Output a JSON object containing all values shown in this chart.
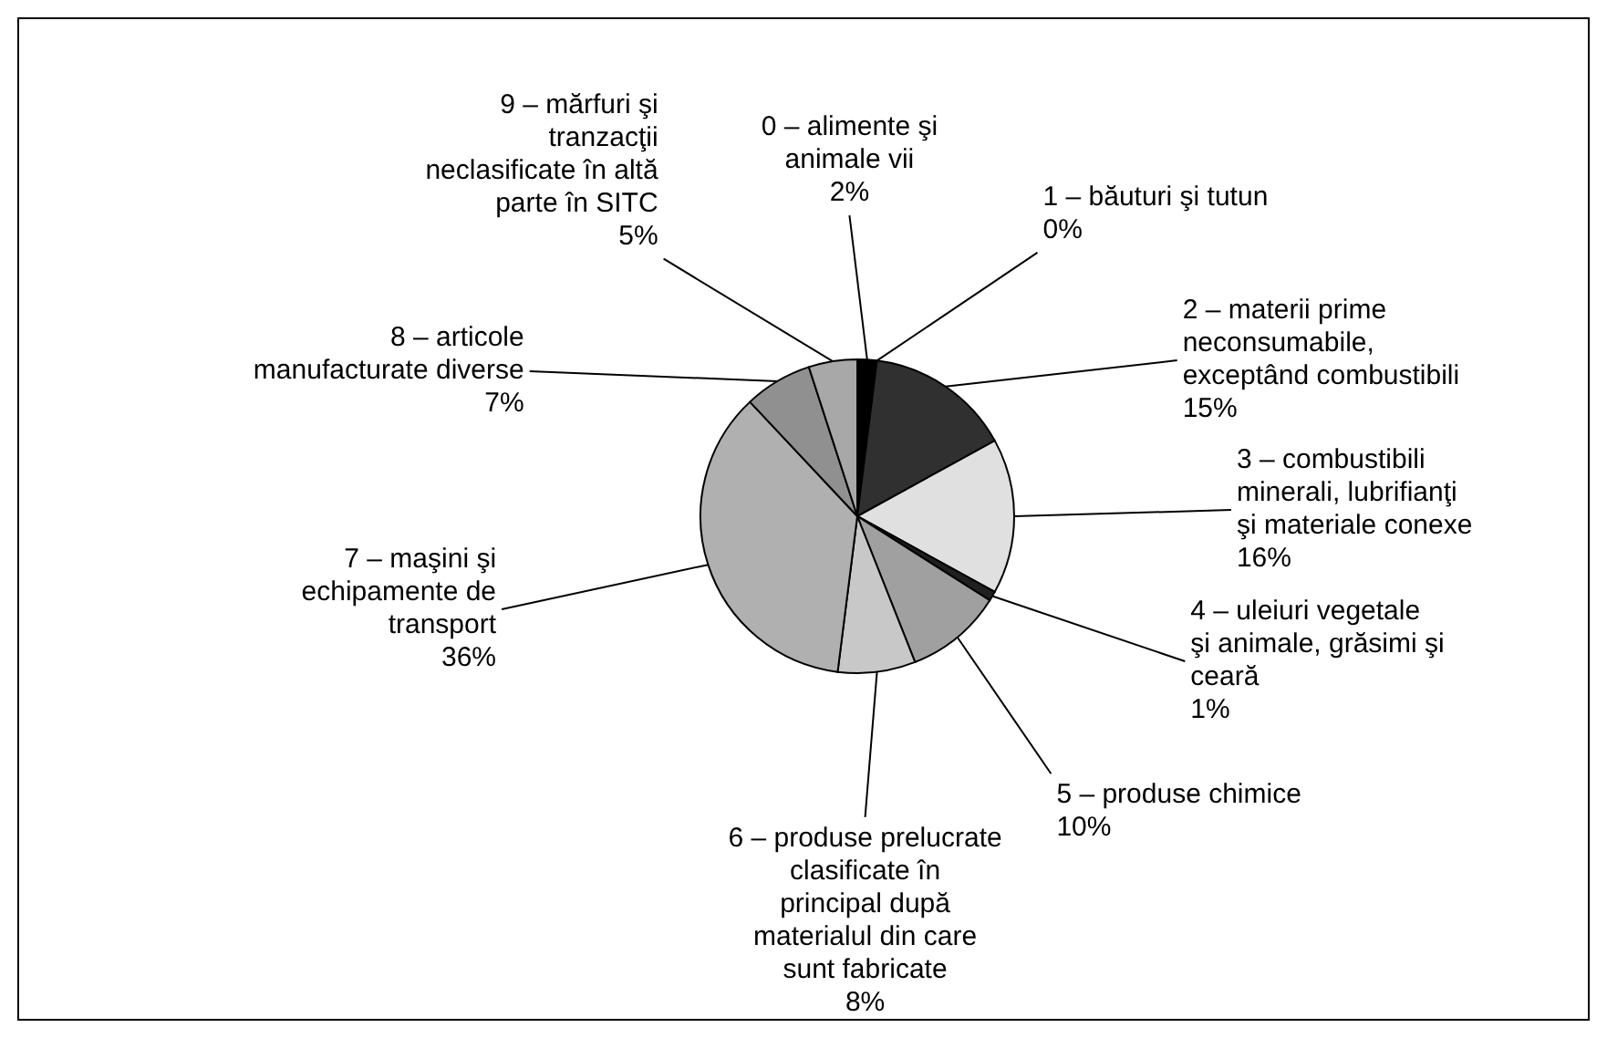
{
  "chart_data": {
    "type": "pie",
    "categories": [
      "0 – alimente şi animale vii",
      "1 – băuturi şi tutun",
      "2 – materii prime neconsumabile, exceptând combustibili",
      "3 – combustibili minerali, lubrifianţi şi materiale conexe",
      "4 – uleiuri vegetale şi animale, grăsimi şi ceară",
      "5 – produse chimice",
      "6 – produse prelucrate clasificate în principal după materialul din care sunt fabricate",
      "7 – maşini şi echipamente de transport",
      "8 – articole manufacturate diverse",
      "9 – mărfuri şi tranzacţii neclasificate în altă parte în SITC"
    ],
    "values": [
      2,
      0,
      15,
      16,
      1,
      10,
      8,
      36,
      7,
      5
    ],
    "value_labels": [
      "2%",
      "0%",
      "15%",
      "16%",
      "1%",
      "10%",
      "8%",
      "36%",
      "7%",
      "5%"
    ],
    "colors": [
      "#000000",
      "#404040",
      "#303030",
      "#e0e0e0",
      "#202020",
      "#a0a0a0",
      "#c8c8c8",
      "#b0b0b0",
      "#909090",
      "#a8a8a8"
    ]
  }
}
